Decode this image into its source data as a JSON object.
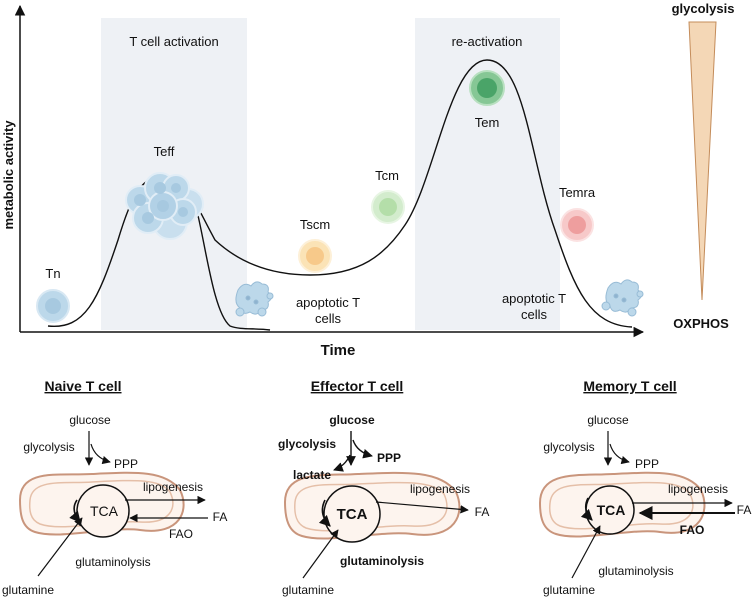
{
  "axes": {
    "ylabel": "metabolic activity",
    "xlabel": "Time"
  },
  "phases": {
    "activation": "T cell activation",
    "reactivation": "re-activation"
  },
  "cells": {
    "tn": "Tn",
    "teff": "Teff",
    "tscm": "Tscm",
    "tcm": "Tcm",
    "tem": "Tem",
    "temra": "Temra"
  },
  "apoptotic": {
    "line1": "apoptotic T",
    "line2": "cells"
  },
  "gradient": {
    "top": "glycolysis",
    "bottom": "OXPHOS"
  },
  "colors": {
    "phase_band": "#eef1f5",
    "cell_blue": "#bcd8ea",
    "cell_blue_core": "#a7c9e0",
    "tscm_fill": "#fbe3b6",
    "tscm_core": "#f7c98a",
    "tcm_fill": "#d3eccd",
    "tcm_core": "#b4dea9",
    "tem_fill": "#86c795",
    "tem_core": "#4aa468",
    "temra_fill": "#f7c9c9",
    "temra_core": "#ee9e9e",
    "mito_stroke": "#c9957c",
    "mito_fill": "#fdf4ee",
    "wedge_fill": "#f4d7b6",
    "wedge_stroke": "#c48c5a"
  },
  "panels": {
    "naive": {
      "title": "Naive T cell",
      "glucose": "glucose",
      "glycolysis": "glycolysis",
      "ppp": "PPP",
      "tca": "TCA",
      "lipogenesis": "lipogenesis",
      "fa": "FA",
      "fao": "FAO",
      "glutaminolysis": "glutaminolysis",
      "glutamine": "glutamine"
    },
    "effector": {
      "title": "Effector T cell",
      "glucose": "glucose",
      "glycolysis": "glycolysis",
      "ppp": "PPP",
      "lactate": "lactate",
      "tca": "TCA",
      "lipogenesis": "lipogenesis",
      "fa": "FA",
      "glutaminolysis": "glutaminolysis",
      "glutamine": "glutamine"
    },
    "memory": {
      "title": "Memory T cell",
      "glucose": "glucose",
      "glycolysis": "glycolysis",
      "ppp": "PPP",
      "tca": "TCA",
      "lipogenesis": "lipogenesis",
      "fa": "FA",
      "fao": "FAO",
      "glutaminolysis": "glutaminolysis",
      "glutamine": "glutamine"
    }
  }
}
